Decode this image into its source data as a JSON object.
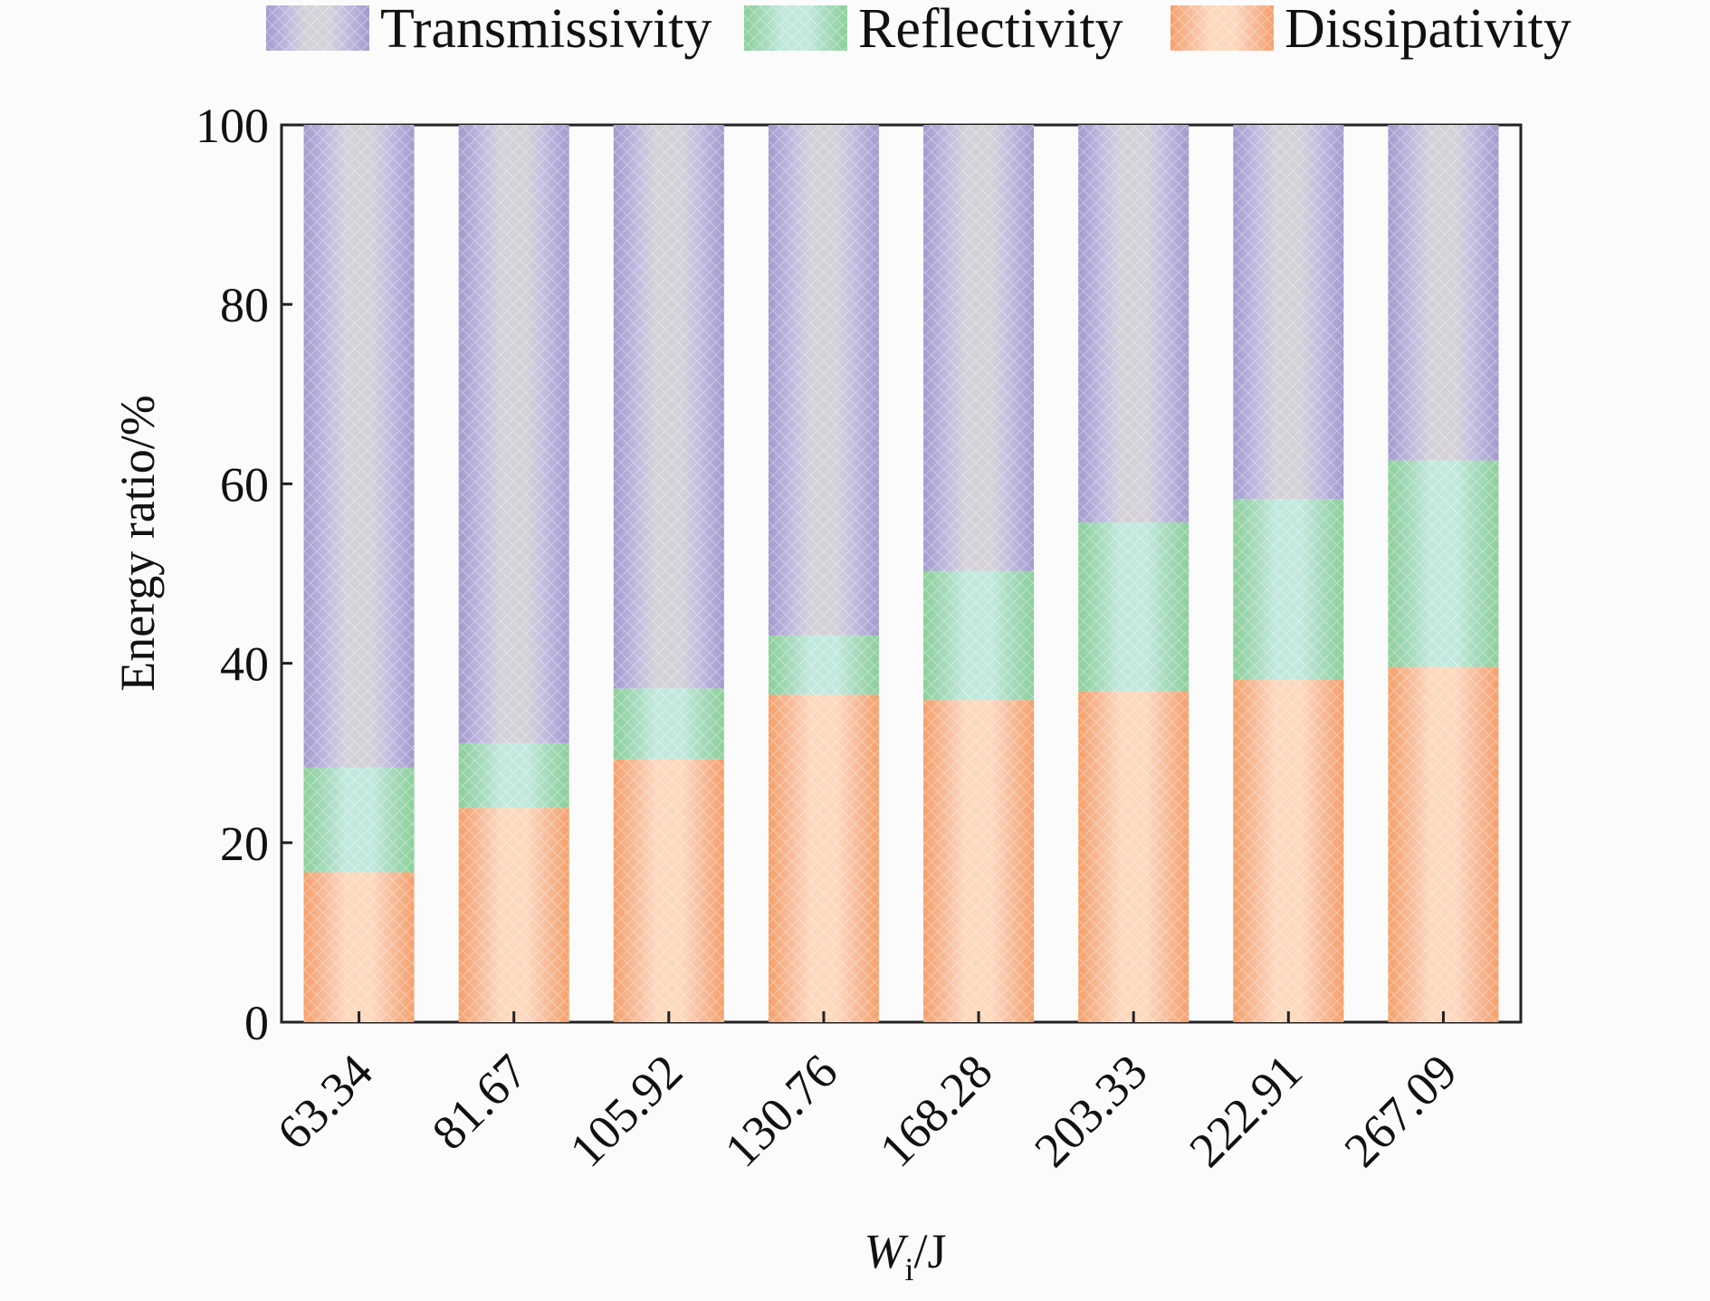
{
  "chart_data": {
    "type": "bar",
    "stacked": true,
    "categories": [
      "63.34",
      "81.67",
      "105.92",
      "130.76",
      "168.28",
      "203.33",
      "222.91",
      "267.09"
    ],
    "series": [
      {
        "name": "Dissipativity",
        "values": [
          16.7,
          23.9,
          29.3,
          36.5,
          35.9,
          36.9,
          38.2,
          39.6
        ]
      },
      {
        "name": "Reflectivity",
        "values": [
          11.7,
          7.2,
          7.9,
          6.6,
          14.4,
          18.8,
          20.1,
          23.0
        ]
      },
      {
        "name": "Transmissivity",
        "values": [
          71.6,
          68.9,
          62.8,
          56.9,
          49.7,
          44.3,
          41.7,
          37.4
        ]
      }
    ],
    "legend_order": [
      "Transmissivity",
      "Reflectivity",
      "Dissipativity"
    ],
    "legend_position": "top",
    "xlabel": {
      "main": "W",
      "sub": "i",
      "unit": "/J"
    },
    "ylabel": "Energy ratio/%",
    "ylim": [
      0,
      100
    ],
    "yticks": [
      "0",
      "20",
      "40",
      "60",
      "80",
      "100"
    ],
    "grid": false,
    "colors": {
      "Transmissivity": "#a99fcf",
      "Transmissivity_center": "#d2cfd6",
      "Reflectivity": "#8fd19e",
      "Reflectivity_center": "#bfe8dc",
      "Dissipativity": "#f6a36e",
      "Dissipativity_center": "#fcd5b8"
    }
  }
}
